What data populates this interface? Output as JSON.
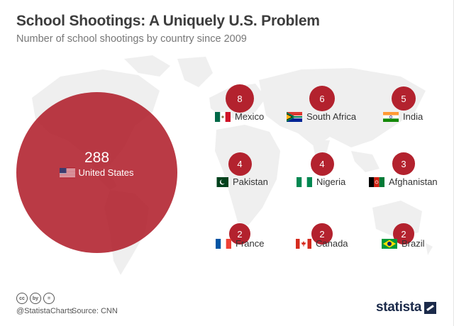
{
  "header": {
    "title": "School Shootings: A Uniquely U.S. Problem",
    "subtitle": "Number of school shootings by country since 2009"
  },
  "chart_data": {
    "type": "bubble",
    "title": "School Shootings: A Uniquely U.S. Problem",
    "subtitle": "Number of school shootings by country since 2009",
    "categories": [
      "United States",
      "Mexico",
      "South Africa",
      "India",
      "Pakistan",
      "Nigeria",
      "Afghanistan",
      "France",
      "Canada",
      "Brazil"
    ],
    "values": [
      288,
      8,
      6,
      5,
      4,
      4,
      3,
      2,
      2,
      2
    ],
    "highlight": "United States"
  },
  "flags": {
    "United States": "us",
    "Mexico": "mx",
    "South Africa": "za",
    "India": "in",
    "Pakistan": "pk",
    "Nigeria": "ng",
    "Afghanistan": "af",
    "France": "fr",
    "Canada": "ca",
    "Brazil": "br"
  },
  "colors": {
    "bubble": "#b3222e",
    "text": "#333333",
    "map": "#eeeeee"
  },
  "footer": {
    "license_icons": [
      "cc",
      "by",
      "="
    ],
    "handle": "@StatistaCharts",
    "source": "Source: CNN",
    "brand": "statista"
  }
}
